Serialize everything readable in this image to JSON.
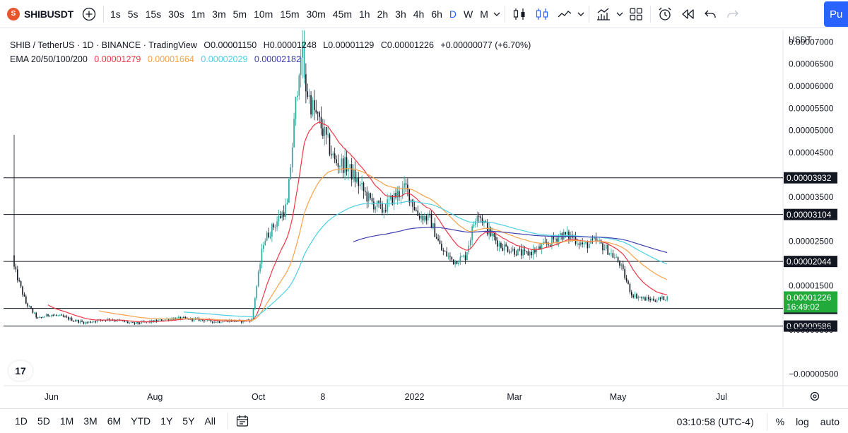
{
  "toolbar": {
    "symbol": "SHIBUSDT",
    "intervals": [
      "1s",
      "5s",
      "15s",
      "30s",
      "1m",
      "3m",
      "5m",
      "10m",
      "15m",
      "30m",
      "45m",
      "1h",
      "2h",
      "3h",
      "4h",
      "6h",
      "D",
      "W",
      "M"
    ],
    "active_interval": "D",
    "publish_label": "Pu"
  },
  "legend": {
    "pair": "SHIB / TetherUS · 1D · BINANCE · TradingView",
    "open": "O0.00001150",
    "high": "H0.00001248",
    "low": "L0.00001129",
    "close": "C0.00001226",
    "change": "+0.00000077 (+6.70%)",
    "ema_label": "EMA 20/50/100/200",
    "ema_values": [
      "0.00001279",
      "0.00001664",
      "0.00002029",
      "0.00002182"
    ]
  },
  "colors": {
    "up": "#26a69a",
    "down": "#131722",
    "ema20": "#f23645",
    "ema50": "#f7a24b",
    "ema100": "#4dd0e1",
    "ema200": "#3f3fb0",
    "accent": "#2962ff",
    "last_price_bg": "#22ab3b"
  },
  "price_axis": {
    "currency": "USDT",
    "ticks": [
      "0.00007000",
      "0.00006500",
      "0.00006000",
      "0.00005500",
      "0.00005000",
      "0.00004500",
      "0.00003500",
      "0.00002500",
      "0.00001500",
      "0.00000500",
      "−0.00000500"
    ],
    "last_price": "0.00001226",
    "countdown": "16:49:02",
    "hlines": [
      "0.00003932",
      "0.00003104",
      "0.00002044",
      "0.00000984",
      "0.00000586"
    ]
  },
  "time_axis": {
    "labels": [
      "Jun",
      "Aug",
      "Oct",
      "8",
      "2022",
      "Mar",
      "May",
      "Jul"
    ]
  },
  "chart_data": {
    "type": "candlestick",
    "title": "SHIB / TetherUS · 1D · BINANCE · TradingView",
    "y_range": [
      -6e-06,
      7.1e-05
    ],
    "x_range": [
      "2021-05-10",
      "2022-07-31"
    ],
    "closes_weekly": [
      [
        "2021-05-10",
        1.9e-05
      ],
      [
        "2021-05-17",
        1.1e-05
      ],
      [
        "2021-05-24",
        7.5e-06
      ],
      [
        "2021-05-31",
        8.5e-06
      ],
      [
        "2021-06-07",
        8e-06
      ],
      [
        "2021-06-14",
        7.2e-06
      ],
      [
        "2021-06-21",
        6.6e-06
      ],
      [
        "2021-06-28",
        7.1e-06
      ],
      [
        "2021-07-05",
        7.4e-06
      ],
      [
        "2021-07-12",
        7e-06
      ],
      [
        "2021-07-19",
        6.4e-06
      ],
      [
        "2021-07-26",
        6.7e-06
      ],
      [
        "2021-08-02",
        7e-06
      ],
      [
        "2021-08-09",
        7.5e-06
      ],
      [
        "2021-08-16",
        7.6e-06
      ],
      [
        "2021-08-23",
        7.4e-06
      ],
      [
        "2021-08-30",
        7.2e-06
      ],
      [
        "2021-09-06",
        6.8e-06
      ],
      [
        "2021-09-13",
        7.1e-06
      ],
      [
        "2021-09-20",
        6.9e-06
      ],
      [
        "2021-09-27",
        7.3e-06
      ],
      [
        "2021-10-04",
        2.5e-05
      ],
      [
        "2021-10-11",
        2.9e-05
      ],
      [
        "2021-10-18",
        3.3e-05
      ],
      [
        "2021-10-25",
        6.5e-05
      ],
      [
        "2021-11-01",
        5.6e-05
      ],
      [
        "2021-11-08",
        5e-05
      ],
      [
        "2021-11-15",
        4.3e-05
      ],
      [
        "2021-11-22",
        4.2e-05
      ],
      [
        "2021-11-29",
        3.8e-05
      ],
      [
        "2021-12-06",
        3.4e-05
      ],
      [
        "2021-12-13",
        3.2e-05
      ],
      [
        "2021-12-20",
        3.5e-05
      ],
      [
        "2021-12-27",
        3.7e-05
      ],
      [
        "2022-01-03",
        3.1e-05
      ],
      [
        "2022-01-10",
        3e-05
      ],
      [
        "2022-01-17",
        2.3e-05
      ],
      [
        "2022-01-24",
        2.05e-05
      ],
      [
        "2022-01-31",
        2.15e-05
      ],
      [
        "2022-02-07",
        3.2e-05
      ],
      [
        "2022-02-14",
        2.7e-05
      ],
      [
        "2022-02-21",
        2.4e-05
      ],
      [
        "2022-02-28",
        2.3e-05
      ],
      [
        "2022-03-07",
        2.2e-05
      ],
      [
        "2022-03-14",
        2.3e-05
      ],
      [
        "2022-03-21",
        2.45e-05
      ],
      [
        "2022-03-28",
        2.65e-05
      ],
      [
        "2022-04-04",
        2.6e-05
      ],
      [
        "2022-04-11",
        2.4e-05
      ],
      [
        "2022-04-18",
        2.5e-05
      ],
      [
        "2022-04-25",
        2.3e-05
      ],
      [
        "2022-05-02",
        2e-05
      ],
      [
        "2022-05-09",
        1.3e-05
      ],
      [
        "2022-05-16",
        1.2e-05
      ],
      [
        "2022-05-23",
        1.18e-05
      ],
      [
        "2022-05-30",
        1.23e-05
      ]
    ],
    "ema20_last": 1.279e-05,
    "ema50_last": 1.664e-05,
    "ema100_last": 2.029e-05,
    "ema200_last": 2.182e-05
  },
  "bottom": {
    "ranges": [
      "1D",
      "5D",
      "1M",
      "3M",
      "6M",
      "YTD",
      "1Y",
      "5Y",
      "All"
    ],
    "clock": "03:10:58 (UTC-4)",
    "percent": "%",
    "log": "log",
    "auto": "auto",
    "tv_logo": "17"
  }
}
